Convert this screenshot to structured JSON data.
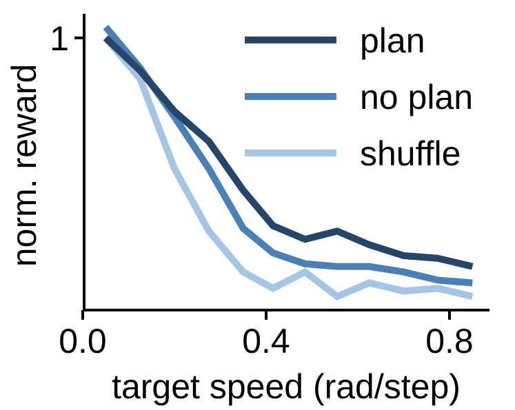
{
  "chart_data": {
    "type": "line",
    "xlabel": "target speed (rad/step)",
    "ylabel": "norm. reward",
    "xlim": [
      0.0,
      0.88
    ],
    "ylim": [
      0.0,
      1.1
    ],
    "x_ticks": [
      0.0,
      0.4,
      0.8
    ],
    "x_tick_labels": [
      "0.0",
      "0.4",
      "0.8"
    ],
    "y_ticks": [
      1.0
    ],
    "y_tick_labels": [
      "1"
    ],
    "grid": false,
    "legend_placement": "top-right",
    "x": [
      0.05,
      0.125,
      0.2,
      0.275,
      0.35,
      0.415,
      0.485,
      0.555,
      0.625,
      0.7,
      0.775,
      0.85
    ],
    "series": [
      {
        "name": "plan",
        "color": "#26456b",
        "values": [
          1.0,
          0.88,
          0.73,
          0.62,
          0.44,
          0.31,
          0.26,
          0.29,
          0.24,
          0.2,
          0.19,
          0.16
        ]
      },
      {
        "name": "no plan",
        "color": "#4a80b5",
        "values": [
          1.04,
          0.89,
          0.71,
          0.52,
          0.3,
          0.21,
          0.17,
          0.16,
          0.16,
          0.14,
          0.11,
          0.1
        ]
      },
      {
        "name": "shuffle",
        "color": "#a4c5e3",
        "values": [
          1.0,
          0.85,
          0.52,
          0.29,
          0.14,
          0.08,
          0.14,
          0.05,
          0.1,
          0.07,
          0.08,
          0.05
        ]
      }
    ]
  }
}
